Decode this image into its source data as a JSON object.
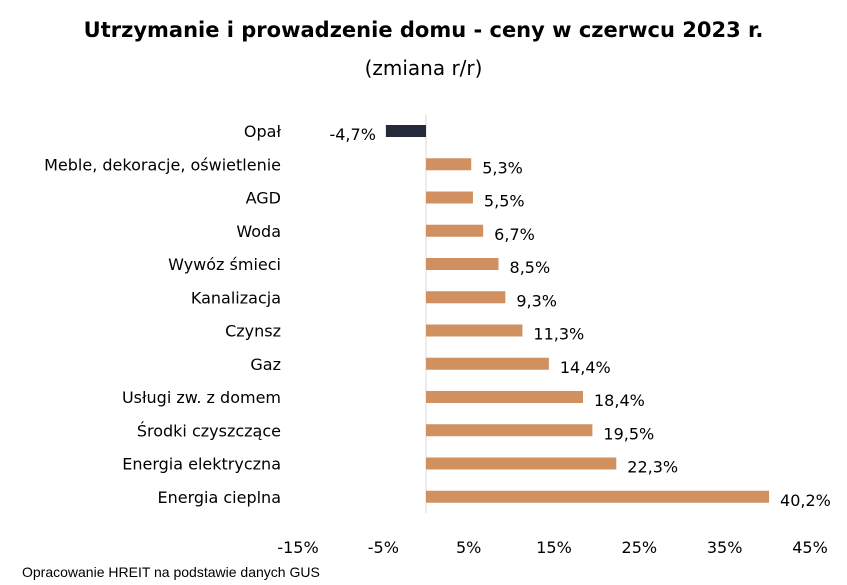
{
  "chart_data": {
    "type": "bar",
    "orientation": "horizontal",
    "title": "Utrzymanie i prowadzenie domu - ceny w czerwcu 2023 r.",
    "subtitle": "(zmiana r/r)",
    "categories": [
      "Opał",
      "Meble, dekoracje, oświetlenie",
      "AGD",
      "Woda",
      "Wywóz śmieci",
      "Kanalizacja",
      "Czynsz",
      "Gaz",
      "Usługi zw. z domem",
      "Środki czyszczące",
      "Energia elektryczna",
      "Energia cieplna"
    ],
    "values": [
      -4.7,
      5.3,
      5.5,
      6.7,
      8.5,
      9.3,
      11.3,
      14.4,
      18.4,
      19.5,
      22.3,
      40.2
    ],
    "data_labels": [
      "-4,7%",
      "5,3%",
      "5,5%",
      "6,7%",
      "8,5%",
      "9,3%",
      "11,3%",
      "14,4%",
      "18,4%",
      "19,5%",
      "22,3%",
      "40,2%"
    ],
    "xlim": [
      -15,
      45
    ],
    "x_ticks": [
      -15,
      -5,
      5,
      15,
      25,
      35,
      45
    ],
    "x_tick_labels": [
      "-15%",
      "-5%",
      "5%",
      "15%",
      "25%",
      "35%",
      "45%"
    ],
    "grid": false,
    "colors": {
      "positive": "#d09060",
      "negative": "#252a3a"
    }
  },
  "source": "Opracowanie HREIT na podstawie danych GUS"
}
